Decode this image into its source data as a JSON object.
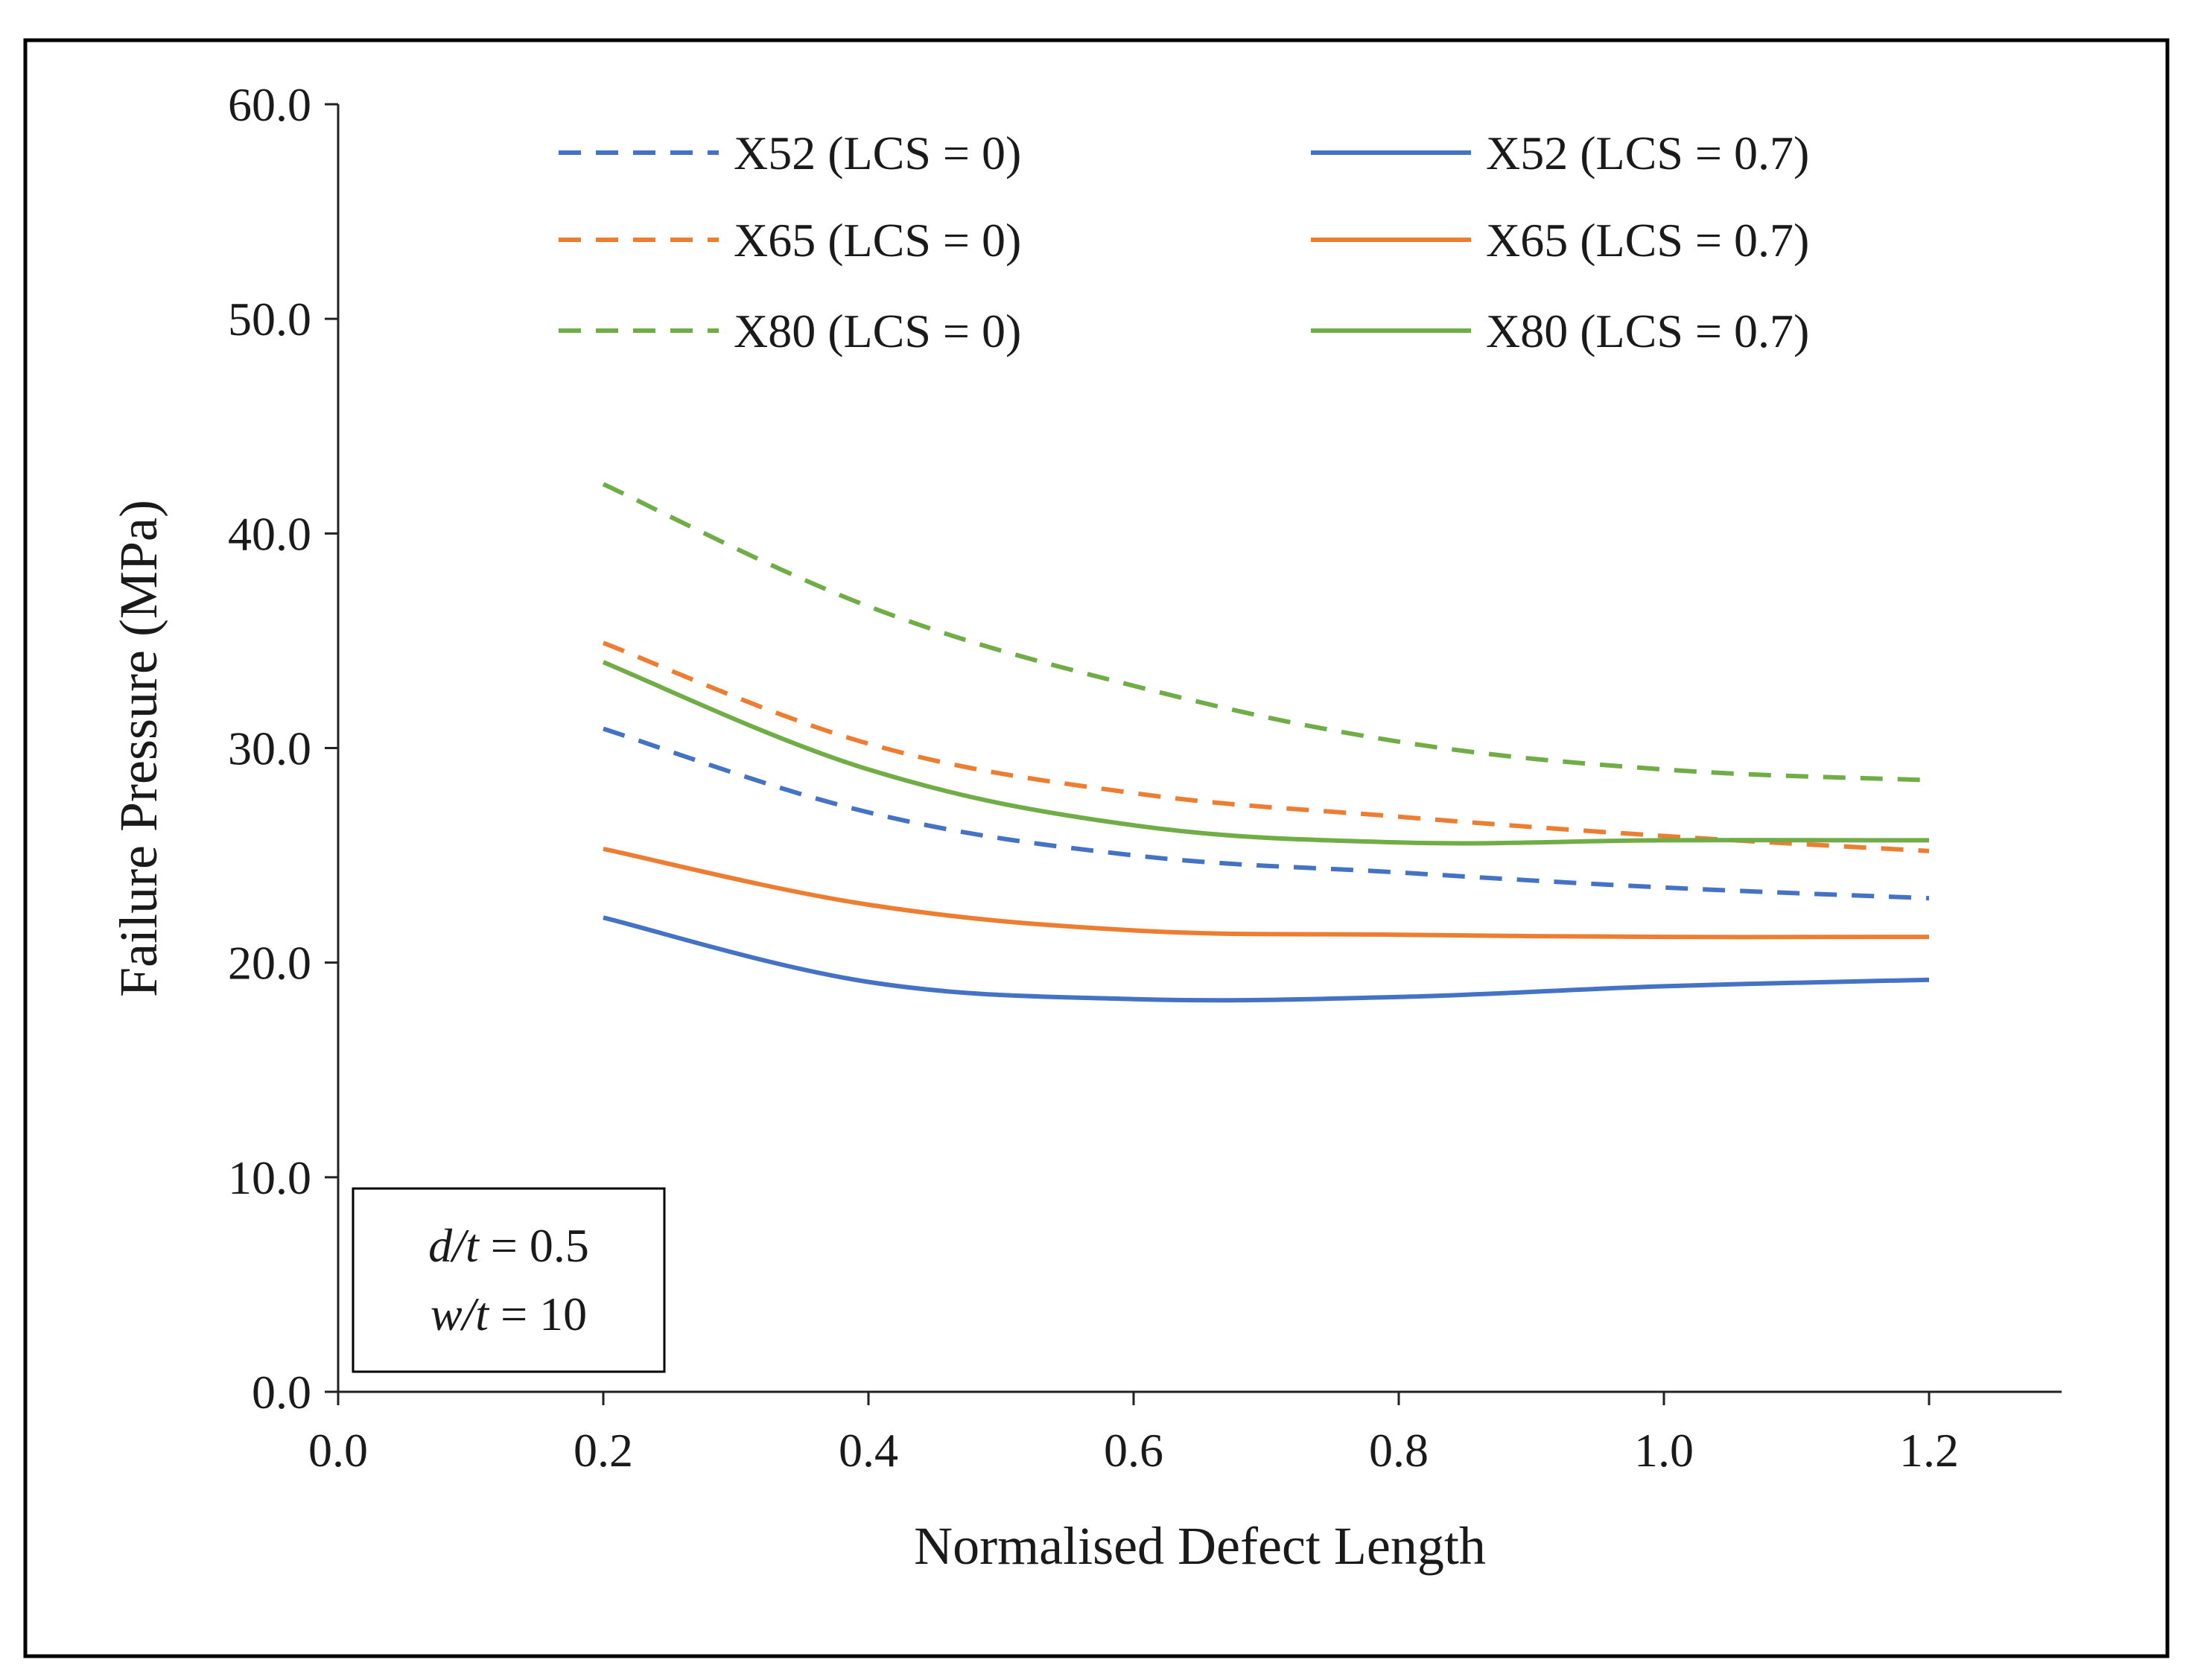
{
  "chart_data": {
    "type": "line",
    "xlabel": "Normalised Defect Length",
    "ylabel": "Failure Pressure (MPa)",
    "xlim": [
      0.0,
      1.3
    ],
    "ylim": [
      0.0,
      60.0
    ],
    "x_ticks": [
      0.0,
      0.2,
      0.4,
      0.6,
      0.8,
      1.0,
      1.2
    ],
    "x_tick_labels": [
      "0.0",
      "0.2",
      "0.4",
      "0.6",
      "0.8",
      "1.0",
      "1.2"
    ],
    "y_ticks": [
      0,
      10,
      20,
      30,
      40,
      50,
      60
    ],
    "y_tick_labels": [
      "0.0",
      "10.0",
      "20.0",
      "30.0",
      "40.0",
      "50.0",
      "60.0"
    ],
    "grid": false,
    "legend_position": "top",
    "x": [
      0.2,
      0.4,
      0.6,
      0.8,
      1.0,
      1.2
    ],
    "series": [
      {
        "name": "X52 (LCS = 0)",
        "color": "#4472C4",
        "dash": true,
        "values": [
          30.9,
          27.0,
          25.0,
          24.2,
          23.5,
          23.0
        ]
      },
      {
        "name": "X52 (LCS = 0.7)",
        "color": "#4472C4",
        "dash": false,
        "values": [
          22.1,
          19.1,
          18.3,
          18.4,
          18.9,
          19.2
        ]
      },
      {
        "name": "X65 (LCS = 0)",
        "color": "#ED7D31",
        "dash": true,
        "values": [
          34.9,
          30.2,
          27.9,
          26.8,
          25.9,
          25.2
        ]
      },
      {
        "name": "X65 (LCS = 0.7)",
        "color": "#ED7D31",
        "dash": false,
        "values": [
          25.3,
          22.7,
          21.5,
          21.3,
          21.2,
          21.2
        ]
      },
      {
        "name": "X80 (LCS = 0)",
        "color": "#70AD47",
        "dash": true,
        "values": [
          42.3,
          36.6,
          32.9,
          30.3,
          29.0,
          28.5
        ]
      },
      {
        "name": "X80 (LCS = 0.7)",
        "color": "#70AD47",
        "dash": false,
        "values": [
          34.0,
          29.0,
          26.4,
          25.6,
          25.7,
          25.7
        ]
      }
    ],
    "annotation": {
      "line1_var": "d/t",
      "line1_value": " = 0.5",
      "line2_var": "w/t",
      "line2_value": " = 10"
    }
  }
}
